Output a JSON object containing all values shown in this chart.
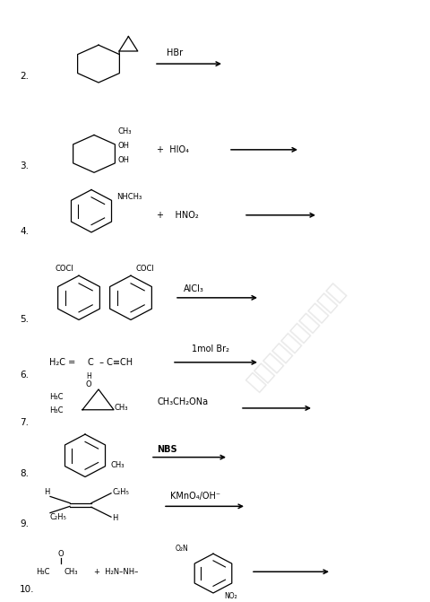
{
  "background_color": "#ffffff",
  "watermark_text": "河北省教育厅版权所有",
  "watermark_color": "#b0b0b0",
  "watermark_alpha": 0.3,
  "fig_width": 4.81,
  "fig_height": 6.71,
  "dpi": 100,
  "reactions": [
    {
      "num": "2.",
      "ny": 0.93
    },
    {
      "num": "3.",
      "ny": 0.8
    },
    {
      "num": "4.",
      "ny": 0.695
    },
    {
      "num": "5.",
      "ny": 0.558
    },
    {
      "num": "6.",
      "ny": 0.432
    },
    {
      "num": "7.",
      "ny": 0.338
    },
    {
      "num": "8.",
      "ny": 0.24
    },
    {
      "num": "9.",
      "ny": 0.148
    },
    {
      "num": "10.",
      "ny": 0.04
    }
  ]
}
